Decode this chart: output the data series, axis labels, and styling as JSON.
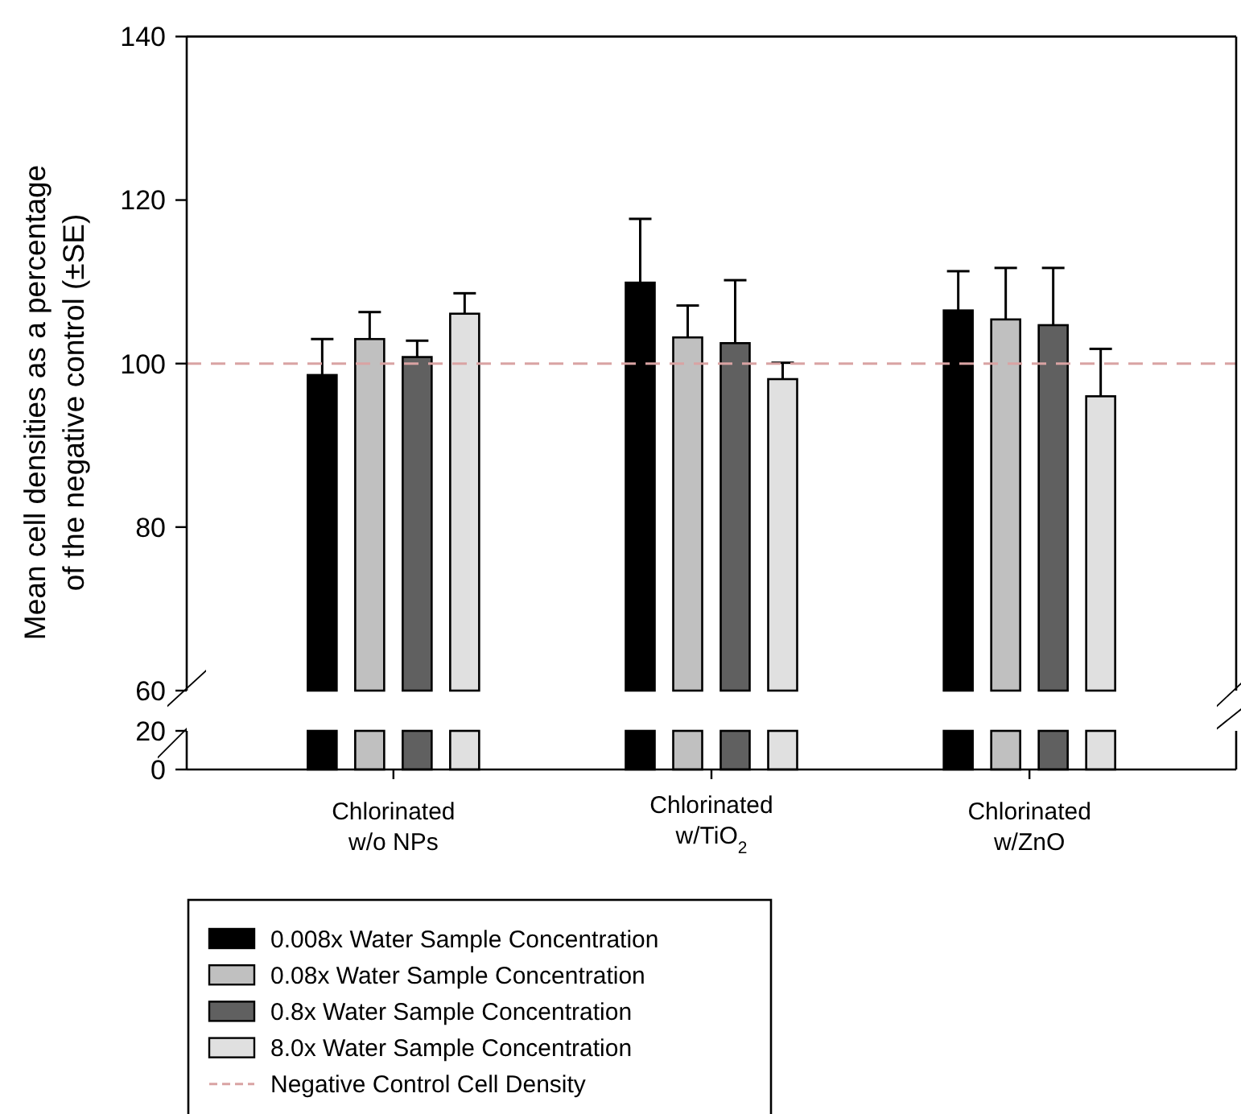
{
  "chart_data": [
    {
      "type": "bar",
      "ylabel": "Mean cell densities as a percentage\nof the negative control (±SE)",
      "categories": [
        null,
        null,
        null
      ],
      "series": [
        {
          "name": "0.008x Water Sample Concentration",
          "color": "#000000",
          "values": [
            98.6,
            109.9,
            106.5
          ],
          "errors": [
            [
              98.6,
              103.0
            ],
            [
              109.9,
              117.7
            ],
            [
              106.5,
              111.3
            ]
          ]
        },
        {
          "name": "0.08x Water Sample Concentration",
          "color": "#c0c0c0",
          "values": [
            103.0,
            103.2,
            105.4
          ],
          "errors": [
            [
              103.0,
              106.3
            ],
            [
              103.2,
              107.1
            ],
            [
              105.4,
              111.7
            ]
          ]
        },
        {
          "name": "0.8x Water Sample Concentration",
          "color": "#606060",
          "values": [
            100.8,
            102.5,
            104.7
          ],
          "errors": [
            [
              100.8,
              102.8
            ],
            [
              102.5,
              110.2
            ],
            [
              104.7,
              111.7
            ]
          ]
        },
        {
          "name": "8.0x Water Sample Concentration",
          "color": "#e0e0e0",
          "values": [
            106.1,
            98.1,
            96.0
          ],
          "errors": [
            [
              106.1,
              108.6
            ],
            [
              98.1,
              100.1
            ],
            [
              96.0,
              101.8
            ]
          ]
        }
      ],
      "ylim": [
        60,
        140
      ],
      "yticks": [
        60,
        80,
        100,
        120,
        140
      ],
      "tick_labels": "y",
      "ref_lines": [
        {
          "axis": "y",
          "value": 100,
          "label": "Negative Control Cell Density",
          "color": "#d9a3a3",
          "line_style": "dashed"
        }
      ],
      "legend": "bottom left",
      "grid": false
    },
    {
      "type": "bar",
      "categories": [
        "Chlorinated\nw/o NPs",
        "Chlorinated\nw/TiO$_{2}$",
        "Chlorinated\nw/ZnO"
      ],
      "series": [
        {
          "color": "#000000",
          "values": [
            20,
            20,
            20
          ]
        },
        {
          "color": "#c0c0c0",
          "values": [
            20,
            20,
            20
          ]
        },
        {
          "color": "#606060",
          "values": [
            20,
            20,
            20
          ]
        },
        {
          "color": "#e0e0e0",
          "values": [
            20,
            20,
            20
          ]
        }
      ],
      "ylim": [
        0,
        20
      ],
      "yticks": [
        0,
        20
      ]
    }
  ]
}
